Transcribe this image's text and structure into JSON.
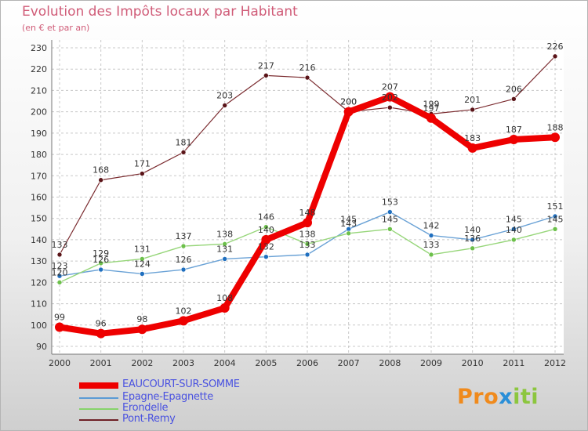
{
  "chart_data": {
    "type": "line",
    "title": "Evolution des Impôts locaux par Habitant",
    "subtitle": "(en € et par an)",
    "x": [
      2000,
      2001,
      2002,
      2003,
      2004,
      2005,
      2006,
      2007,
      2008,
      2009,
      2010,
      2011,
      2012
    ],
    "x_tick_labels": [
      "2000",
      "2001",
      "2002",
      "2003",
      "2004",
      "2005",
      "2006",
      "2007",
      "2008",
      "2009",
      "2010",
      "2011",
      "2012"
    ],
    "y_tick_labels": [
      "90",
      "100",
      "110",
      "120",
      "130",
      "140",
      "150",
      "160",
      "170",
      "180",
      "190",
      "200",
      "210",
      "220",
      "230"
    ],
    "ylim": [
      90,
      230
    ],
    "grid": true,
    "legend_position": "bottom-left",
    "series": [
      {
        "name": "EAUCOURT-SUR-SOMME",
        "color": "#ee0000",
        "values": [
          99,
          96,
          98,
          102,
          108,
          140,
          148,
          200,
          207,
          197,
          183,
          187,
          188
        ],
        "labels": [
          "99",
          "96",
          "98",
          "102",
          "108",
          "140",
          "148",
          "200",
          "207",
          "197",
          "183",
          "187",
          "188"
        ]
      },
      {
        "name": "Epagne-Epagnette",
        "color": "#5b9bd5",
        "values": [
          123,
          126,
          124,
          126,
          131,
          132,
          133,
          145,
          153,
          142,
          140,
          145,
          151
        ],
        "labels": [
          "123",
          "126",
          "124",
          "126",
          "131",
          "132",
          "133",
          "145",
          "153",
          "142",
          "140",
          "145",
          "151"
        ]
      },
      {
        "name": "Erondelle",
        "color": "#86d36a",
        "values": [
          120,
          129,
          131,
          137,
          138,
          146,
          138,
          143,
          145,
          133,
          136,
          140,
          145
        ],
        "labels": [
          "120",
          "129",
          "131",
          "137",
          "138",
          "146",
          "138",
          "143",
          "145",
          "133",
          "136",
          "140",
          "145"
        ]
      },
      {
        "name": "Pont-Remy",
        "color": "#6e2026",
        "values": [
          133,
          168,
          171,
          181,
          203,
          217,
          216,
          200,
          202,
          199,
          201,
          206,
          226
        ],
        "labels": [
          "133",
          "168",
          "171",
          "181",
          "203",
          "217",
          "216",
          "200",
          "202",
          "199",
          "201",
          "206",
          "226"
        ]
      }
    ]
  },
  "brand": {
    "p1": "Pro",
    "p2": "x",
    "p3": "iti"
  }
}
